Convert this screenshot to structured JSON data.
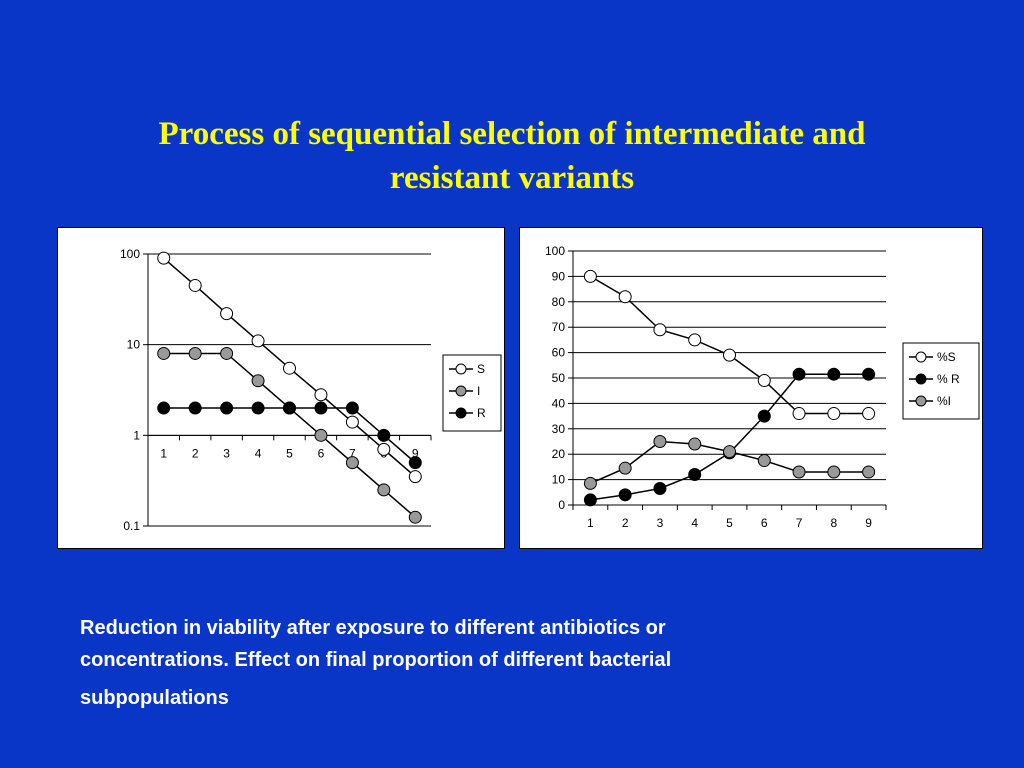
{
  "title": {
    "line1": "Process of sequential selection of intermediate and",
    "line2": "resistant variants"
  },
  "caption": {
    "line1": "Reduction in viability after exposure to different antibiotics or",
    "line2": "concentrations. Effect on final proportion of different bacterial",
    "line3": "subpopulations"
  },
  "colors": {
    "background": "#0a36c8",
    "title": "#ffff00",
    "caption": "#ffffff",
    "marker_white": "#ffffff",
    "marker_gray": "#999999",
    "marker_black": "#000000"
  },
  "chart_data": [
    {
      "type": "line",
      "y_scale": "log",
      "ylim": [
        0.1,
        100
      ],
      "y_ticks": [
        "100",
        "10",
        "1",
        "0.1"
      ],
      "x": [
        1,
        2,
        3,
        4,
        5,
        6,
        7,
        8,
        9
      ],
      "x_ticks": [
        "1",
        "2",
        "3",
        "4",
        "5",
        "6",
        "7",
        "8",
        "9"
      ],
      "x_axis_at": 1,
      "grid": true,
      "legend_position": "right",
      "series": [
        {
          "name": "S",
          "marker": "white",
          "values": [
            90,
            45,
            22,
            11,
            5.5,
            2.8,
            1.4,
            0.7,
            0.35
          ]
        },
        {
          "name": "I",
          "marker": "gray",
          "values": [
            8,
            8,
            8,
            4,
            2,
            1,
            0.5,
            0.25,
            0.125
          ]
        },
        {
          "name": "R",
          "marker": "black",
          "values": [
            2,
            2,
            2,
            2,
            2,
            2,
            2,
            1,
            0.5
          ]
        }
      ]
    },
    {
      "type": "line",
      "ylim": [
        0,
        100
      ],
      "y_ticks": [
        "0",
        "10",
        "20",
        "30",
        "40",
        "50",
        "60",
        "70",
        "80",
        "90",
        "100"
      ],
      "x": [
        1,
        2,
        3,
        4,
        5,
        6,
        7,
        8,
        9
      ],
      "x_ticks": [
        "1",
        "2",
        "3",
        "4",
        "5",
        "6",
        "7",
        "8",
        "9"
      ],
      "grid": true,
      "legend_position": "right",
      "series": [
        {
          "name": "%S",
          "marker": "white",
          "values": [
            90,
            82,
            69,
            65,
            59,
            49,
            36,
            36,
            36
          ]
        },
        {
          "name": "% R",
          "marker": "black",
          "values": [
            2,
            4,
            6.5,
            12,
            20.5,
            35,
            51.5,
            51.5,
            51.5
          ]
        },
        {
          "name": "%I",
          "marker": "gray",
          "values": [
            8.5,
            14.5,
            25,
            24,
            21,
            17.5,
            13,
            13,
            13
          ]
        }
      ]
    }
  ]
}
